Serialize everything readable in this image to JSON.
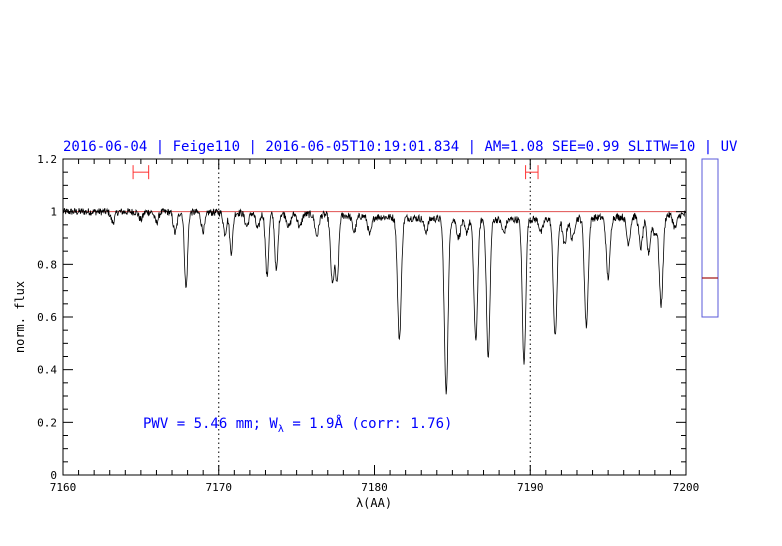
{
  "header": {
    "date": "2016-06-04",
    "target": "Feige110",
    "timestamp": "2016-06-05T10:19:01.834",
    "airmass": "AM=1.08",
    "seeing": "SEE=0.99",
    "slit": "SLITW=10",
    "band": "UV",
    "separator": " | "
  },
  "annotation": {
    "text_prefix": "PWV = 5.46 mm; W",
    "subscript": "λ",
    "text_suffix": " = 1.9Å (corr: 1.76)"
  },
  "colors": {
    "frame": "#000000",
    "spectrum": "#000000",
    "continuum": "#e05050",
    "header_text": "#0000ff",
    "annotation_text": "#0000ff",
    "range_markers": "#ff3333",
    "side_box": "#5a5ad8",
    "side_level": "#a01010"
  },
  "side_panel": {
    "range": [
      0,
      1
    ],
    "level": 0.25
  },
  "chart_data": {
    "type": "line",
    "xlabel": "λ(AA)",
    "ylabel": "norm. flux",
    "xlim": [
      7160,
      7200
    ],
    "ylim": [
      0,
      1.2
    ],
    "xticks": [
      7160,
      7170,
      7180,
      7190,
      7200
    ],
    "xtick_labels": [
      "7160",
      "7170",
      "7180",
      "7190",
      "7200"
    ],
    "yticks": [
      0,
      0.2,
      0.4,
      0.6,
      0.8,
      1,
      1.2
    ],
    "ytick_labels": [
      "0",
      "0.2",
      "0.4",
      "0.6",
      "0.8",
      "1",
      "1.2"
    ],
    "continuum_level": 1.0,
    "reference_lines_x": [
      7170,
      7190
    ],
    "range_markers": [
      {
        "x1": 7164.5,
        "x2": 7165.5,
        "y": 1.15
      },
      {
        "x1": 7189.7,
        "x2": 7190.5,
        "y": 1.15
      }
    ],
    "absorption_lines": [
      {
        "center": 7163.2,
        "depth": 0.04,
        "width": 0.12
      },
      {
        "center": 7165.0,
        "depth": 0.03,
        "width": 0.12
      },
      {
        "center": 7166.0,
        "depth": 0.04,
        "width": 0.12
      },
      {
        "center": 7167.2,
        "depth": 0.08,
        "width": 0.12
      },
      {
        "center": 7167.9,
        "depth": 0.29,
        "width": 0.1
      },
      {
        "center": 7169.0,
        "depth": 0.07,
        "width": 0.12
      },
      {
        "center": 7170.4,
        "depth": 0.08,
        "width": 0.1
      },
      {
        "center": 7170.8,
        "depth": 0.15,
        "width": 0.1
      },
      {
        "center": 7171.8,
        "depth": 0.05,
        "width": 0.12
      },
      {
        "center": 7172.5,
        "depth": 0.06,
        "width": 0.12
      },
      {
        "center": 7173.1,
        "depth": 0.24,
        "width": 0.1
      },
      {
        "center": 7173.7,
        "depth": 0.22,
        "width": 0.1
      },
      {
        "center": 7174.5,
        "depth": 0.05,
        "width": 0.12
      },
      {
        "center": 7175.2,
        "depth": 0.05,
        "width": 0.12
      },
      {
        "center": 7176.3,
        "depth": 0.08,
        "width": 0.12
      },
      {
        "center": 7177.3,
        "depth": 0.26,
        "width": 0.12
      },
      {
        "center": 7177.6,
        "depth": 0.25,
        "width": 0.1
      },
      {
        "center": 7178.7,
        "depth": 0.06,
        "width": 0.12
      },
      {
        "center": 7179.7,
        "depth": 0.07,
        "width": 0.12
      },
      {
        "center": 7181.6,
        "depth": 0.46,
        "width": 0.12
      },
      {
        "center": 7183.3,
        "depth": 0.05,
        "width": 0.12
      },
      {
        "center": 7184.6,
        "depth": 0.66,
        "width": 0.12
      },
      {
        "center": 7185.4,
        "depth": 0.07,
        "width": 0.12
      },
      {
        "center": 7185.9,
        "depth": 0.05,
        "width": 0.12
      },
      {
        "center": 7186.5,
        "depth": 0.46,
        "width": 0.12
      },
      {
        "center": 7187.3,
        "depth": 0.53,
        "width": 0.11
      },
      {
        "center": 7188.3,
        "depth": 0.05,
        "width": 0.12
      },
      {
        "center": 7189.6,
        "depth": 0.55,
        "width": 0.11
      },
      {
        "center": 7190.7,
        "depth": 0.05,
        "width": 0.12
      },
      {
        "center": 7191.6,
        "depth": 0.45,
        "width": 0.12
      },
      {
        "center": 7192.2,
        "depth": 0.1,
        "width": 0.12
      },
      {
        "center": 7192.7,
        "depth": 0.08,
        "width": 0.12
      },
      {
        "center": 7193.6,
        "depth": 0.41,
        "width": 0.12
      },
      {
        "center": 7195.0,
        "depth": 0.23,
        "width": 0.12
      },
      {
        "center": 7196.3,
        "depth": 0.1,
        "width": 0.12
      },
      {
        "center": 7197.1,
        "depth": 0.12,
        "width": 0.12
      },
      {
        "center": 7197.6,
        "depth": 0.14,
        "width": 0.12
      },
      {
        "center": 7198.0,
        "depth": 0.07,
        "width": 0.12
      },
      {
        "center": 7198.4,
        "depth": 0.34,
        "width": 0.12
      },
      {
        "center": 7199.3,
        "depth": 0.05,
        "width": 0.12
      }
    ]
  }
}
